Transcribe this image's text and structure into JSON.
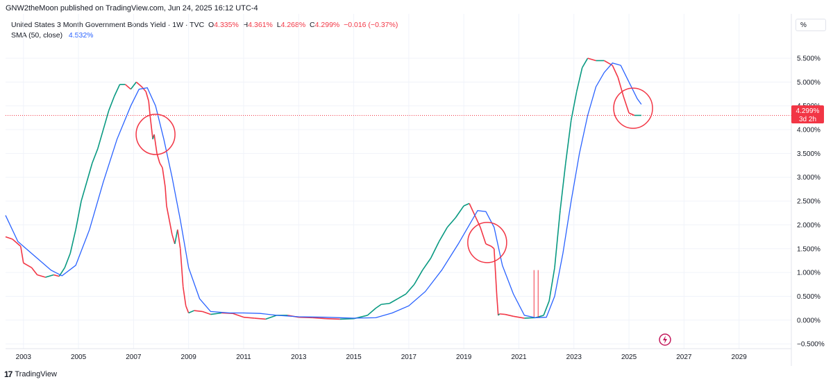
{
  "header": {
    "publisher": "GNW2theMoon published on TradingView.com, Jun 24, 2025 16:12 UTC-4"
  },
  "legend": {
    "symbol": "United States 3 Month Government Bonds Yield · 1W · TVC",
    "o_label": "O",
    "o_value": "4.335%",
    "h_label": "H",
    "h_value": "4.361%",
    "l_label": "L",
    "l_value": "4.268%",
    "c_label": "C",
    "c_value": "4.299%",
    "change": "−0.016 (−0.37%)",
    "sma_label": "SMA (50, close)",
    "sma_value": "4.532%"
  },
  "scale_button": "%",
  "price_badge": {
    "value": "4.299%",
    "countdown": "3d 2h"
  },
  "footer": {
    "brand": "TradingView",
    "logo": "tradingview-logo-icon"
  },
  "colors": {
    "up": "#089981",
    "down": "#f23645",
    "sma": "#2962ff",
    "circle": "#f23645",
    "grid": "#f0f3fa",
    "axis_text": "#131722"
  },
  "chart_data": {
    "type": "line",
    "x_unit": "year",
    "xlim": [
      2002.35,
      2030.9
    ],
    "ylim": [
      -0.6,
      5.85
    ],
    "y_ticks": [
      {
        "value": 5.5,
        "label": "5.500%"
      },
      {
        "value": 5.0,
        "label": "5.000%"
      },
      {
        "value": 4.5,
        "label": "4.500%"
      },
      {
        "value": 4.0,
        "label": "4.000%"
      },
      {
        "value": 3.5,
        "label": "3.500%"
      },
      {
        "value": 3.0,
        "label": "3.000%"
      },
      {
        "value": 2.5,
        "label": "2.500%"
      },
      {
        "value": 2.0,
        "label": "2.000%"
      },
      {
        "value": 1.5,
        "label": "1.500%"
      },
      {
        "value": 1.0,
        "label": "1.000%"
      },
      {
        "value": 0.5,
        "label": "0.500%"
      },
      {
        "value": 0.0,
        "label": "0.000%"
      },
      {
        "value": -0.5,
        "label": "−0.500%"
      }
    ],
    "x_ticks": [
      {
        "value": 2003,
        "label": "2003"
      },
      {
        "value": 2005,
        "label": "2005"
      },
      {
        "value": 2007,
        "label": "2007"
      },
      {
        "value": 2009,
        "label": "2009"
      },
      {
        "value": 2011,
        "label": "2011"
      },
      {
        "value": 2013,
        "label": "2013"
      },
      {
        "value": 2015,
        "label": "2015"
      },
      {
        "value": 2017,
        "label": "2017"
      },
      {
        "value": 2019,
        "label": "2019"
      },
      {
        "value": 2021,
        "label": "2021"
      },
      {
        "value": 2023,
        "label": "2023"
      },
      {
        "value": 2025,
        "label": "2025"
      },
      {
        "value": 2027,
        "label": "2027"
      },
      {
        "value": 2029,
        "label": "2029"
      }
    ],
    "last_price": 4.299,
    "series": [
      {
        "kind": "price",
        "x": [
          2002.35,
          2002.6,
          2002.9,
          2003.0,
          2003.3,
          2003.5,
          2003.8,
          2004.1,
          2004.3,
          2004.5,
          2004.7,
          2004.9,
          2005.1,
          2005.3,
          2005.5,
          2005.7,
          2005.9,
          2006.1,
          2006.3,
          2006.5,
          2006.7,
          2006.9,
          2007.1,
          2007.3,
          2007.45,
          2007.55,
          2007.6,
          2007.7,
          2007.75,
          2007.85,
          2007.95,
          2008.05,
          2008.15,
          2008.2,
          2008.3,
          2008.4,
          2008.5,
          2008.6,
          2008.7,
          2008.8,
          2008.9,
          2009.0,
          2009.2,
          2009.5,
          2009.8,
          2010.2,
          2010.6,
          2011.0,
          2011.4,
          2011.8,
          2012.2,
          2012.6,
          2013.0,
          2013.5,
          2014.0,
          2014.5,
          2015.0,
          2015.5,
          2015.8,
          2016.0,
          2016.3,
          2016.6,
          2016.9,
          2017.2,
          2017.5,
          2017.8,
          2018.1,
          2018.4,
          2018.7,
          2019.0,
          2019.2,
          2019.4,
          2019.6,
          2019.8,
          2020.0,
          2020.1,
          2020.2,
          2020.25,
          2020.3,
          2020.5,
          2020.8,
          2021.2,
          2021.6,
          2021.9,
          2022.1,
          2022.3,
          2022.5,
          2022.7,
          2022.9,
          2023.1,
          2023.3,
          2023.5,
          2023.8,
          2024.1,
          2024.4,
          2024.6,
          2024.8,
          2025.0,
          2025.2,
          2025.45
        ],
        "y": [
          1.75,
          1.7,
          1.55,
          1.2,
          1.1,
          0.95,
          0.9,
          0.95,
          0.92,
          1.1,
          1.4,
          1.9,
          2.5,
          2.9,
          3.3,
          3.6,
          4.0,
          4.4,
          4.7,
          4.95,
          4.95,
          4.85,
          5.0,
          4.9,
          4.8,
          4.6,
          4.3,
          3.8,
          3.9,
          3.5,
          3.3,
          3.2,
          2.8,
          2.4,
          2.1,
          1.8,
          1.6,
          1.9,
          1.5,
          0.7,
          0.3,
          0.15,
          0.2,
          0.18,
          0.12,
          0.15,
          0.14,
          0.06,
          0.04,
          0.02,
          0.1,
          0.1,
          0.06,
          0.05,
          0.03,
          0.02,
          0.03,
          0.1,
          0.25,
          0.33,
          0.35,
          0.45,
          0.55,
          0.75,
          1.05,
          1.3,
          1.65,
          1.95,
          2.15,
          2.4,
          2.45,
          2.2,
          1.95,
          1.6,
          1.55,
          1.5,
          0.5,
          0.1,
          0.13,
          0.12,
          0.08,
          0.04,
          0.05,
          0.1,
          0.4,
          1.1,
          2.3,
          3.3,
          4.2,
          4.8,
          5.3,
          5.5,
          5.45,
          5.45,
          5.35,
          5.1,
          4.7,
          4.35,
          4.3,
          4.3
        ]
      },
      {
        "kind": "sma",
        "x": [
          2002.35,
          2002.8,
          2003.4,
          2004.0,
          2004.4,
          2004.9,
          2005.4,
          2005.9,
          2006.4,
          2006.9,
          2007.2,
          2007.5,
          2007.8,
          2008.1,
          2008.4,
          2008.7,
          2009.0,
          2009.4,
          2009.8,
          2010.5,
          2011.0,
          2011.6,
          2012.2,
          2013.0,
          2014.0,
          2015.0,
          2015.8,
          2016.4,
          2017.0,
          2017.6,
          2018.2,
          2018.8,
          2019.2,
          2019.5,
          2019.8,
          2020.1,
          2020.4,
          2020.8,
          2021.2,
          2021.6,
          2022.0,
          2022.3,
          2022.6,
          2022.9,
          2023.2,
          2023.5,
          2023.8,
          2024.1,
          2024.4,
          2024.7,
          2025.0,
          2025.3,
          2025.45
        ],
        "y": [
          2.2,
          1.65,
          1.35,
          1.05,
          0.93,
          1.15,
          1.9,
          2.9,
          3.8,
          4.5,
          4.85,
          4.88,
          4.5,
          3.8,
          3.0,
          2.1,
          1.1,
          0.45,
          0.18,
          0.15,
          0.15,
          0.14,
          0.1,
          0.07,
          0.06,
          0.04,
          0.05,
          0.15,
          0.3,
          0.6,
          1.05,
          1.6,
          2.0,
          2.3,
          2.28,
          1.95,
          1.15,
          0.55,
          0.1,
          0.05,
          0.06,
          0.5,
          1.4,
          2.5,
          3.5,
          4.3,
          4.9,
          5.2,
          5.4,
          5.35,
          5.0,
          4.65,
          4.532
        ]
      }
    ],
    "highlights": [
      {
        "x": 2007.8,
        "y": 3.9
      },
      {
        "x": 2019.85,
        "y": 1.63
      },
      {
        "x": 2025.15,
        "y": 4.45
      }
    ],
    "marks": [
      {
        "x": 2021.55,
        "y": 1.05
      },
      {
        "x": 2021.7,
        "y": 1.05
      }
    ]
  }
}
